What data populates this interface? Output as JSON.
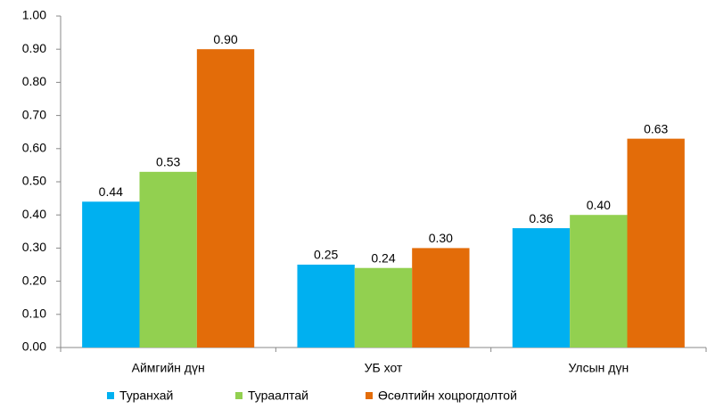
{
  "chart_data": {
    "type": "bar",
    "categories": [
      "Аймгийн дүн",
      "УБ хот",
      "Улсын дүн"
    ],
    "series": [
      {
        "name": "Туранхай",
        "color": "#00b0f0",
        "values": [
          0.44,
          0.25,
          0.36
        ],
        "value_labels": [
          "0.44",
          "0.25",
          "0.36"
        ]
      },
      {
        "name": "Тураалтай",
        "color": "#92d050",
        "values": [
          0.53,
          0.24,
          0.4
        ],
        "value_labels": [
          "0.53",
          "0.24",
          "0.40"
        ]
      },
      {
        "name": "Өсөлтийн хоцрогдолтой",
        "color": "#e36c09",
        "values": [
          0.9,
          0.3,
          0.63
        ],
        "value_labels": [
          "0.90",
          "0.30",
          "0.63"
        ]
      }
    ],
    "ylim": [
      0,
      1
    ],
    "yticks": [
      {
        "value": 0,
        "label": "0.00"
      },
      {
        "value": 0.1,
        "label": "0.10"
      },
      {
        "value": 0.2,
        "label": "0.20"
      },
      {
        "value": 0.3,
        "label": "0.30"
      },
      {
        "value": 0.4,
        "label": "0.40"
      },
      {
        "value": 0.5,
        "label": "0.50"
      },
      {
        "value": 0.6,
        "label": "0.60"
      },
      {
        "value": 0.7,
        "label": "0.70"
      },
      {
        "value": 0.8,
        "label": "0.80"
      },
      {
        "value": 0.9,
        "label": "0.90"
      },
      {
        "value": 1,
        "label": "1.00"
      }
    ],
    "grid": false,
    "legend": "bottom"
  }
}
